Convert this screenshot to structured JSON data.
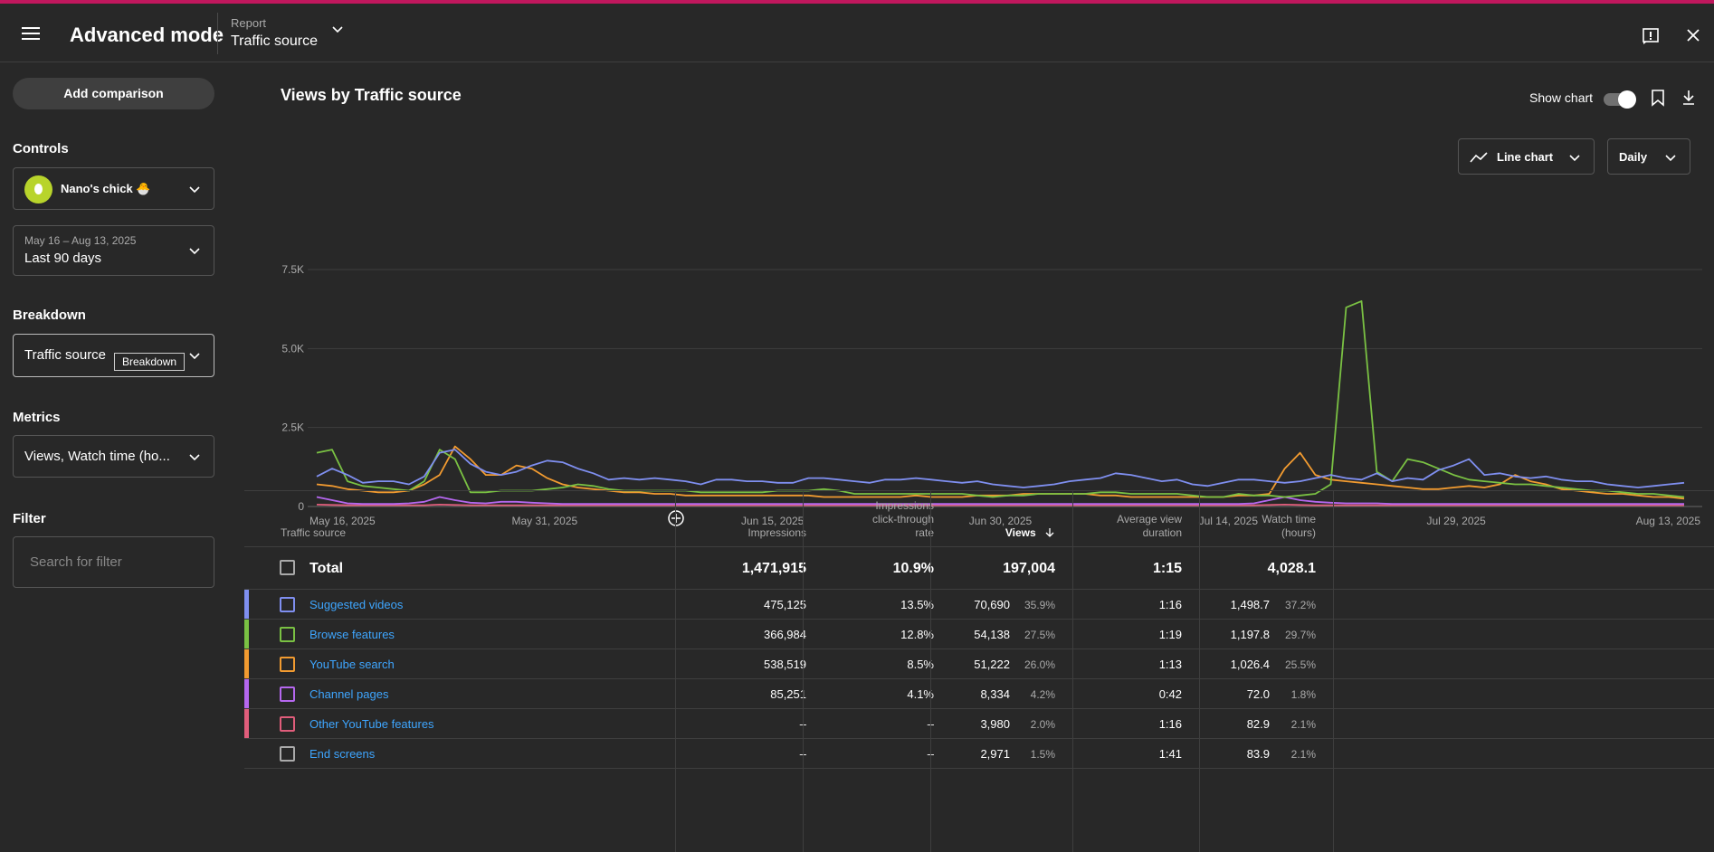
{
  "colors": {
    "accent_topline": "#c0175d",
    "link": "#3ea6ff"
  },
  "header": {
    "app_title": "Advanced mode",
    "report_label": "Report",
    "report_value": "Traffic source"
  },
  "sidebar": {
    "add_comparison": "Add comparison",
    "controls_title": "Controls",
    "channel_name": "Nano's chick 🐣",
    "date_range_sub": "May 16 – Aug 13, 2025",
    "date_range_main": "Last 90 days",
    "breakdown_title": "Breakdown",
    "breakdown_value": "Traffic source",
    "breakdown_tooltip": "Breakdown",
    "metrics_title": "Metrics",
    "metrics_value": "Views, Watch time (ho...",
    "filter_title": "Filter",
    "filter_placeholder": "Search for filter"
  },
  "main": {
    "chart_title": "Views by Traffic source",
    "show_chart_label": "Show chart",
    "chart_type_label": "Line chart",
    "interval_label": "Daily"
  },
  "chart_data": {
    "type": "line",
    "y_ticks": [
      "0",
      "2.5K",
      "5.0K",
      "7.5K"
    ],
    "ylim": [
      0,
      7500
    ],
    "x_tick_labels": [
      "May 16, 2025",
      "May 31, 2025",
      "Jun 15, 2025",
      "Jun 30, 2025",
      "Jul 14, 2025",
      "Jul 29, 2025",
      "Aug 13, 2025"
    ],
    "n_points": 90,
    "series": [
      {
        "name": "Suggested videos",
        "color": "#7f8ff0",
        "values": [
          950,
          1200,
          1000,
          750,
          800,
          800,
          700,
          950,
          1700,
          1800,
          1350,
          1100,
          1000,
          1100,
          1300,
          1450,
          1400,
          1200,
          1050,
          850,
          900,
          850,
          900,
          850,
          800,
          700,
          850,
          850,
          800,
          800,
          750,
          750,
          900,
          900,
          850,
          800,
          750,
          850,
          850,
          900,
          850,
          800,
          750,
          800,
          700,
          650,
          600,
          650,
          700,
          800,
          850,
          900,
          1050,
          1000,
          900,
          800,
          850,
          700,
          650,
          750,
          850,
          850,
          800,
          750,
          800,
          900,
          1000,
          900,
          850,
          1050,
          800,
          900,
          850,
          1150,
          1300,
          1500,
          1000,
          1050,
          950,
          900,
          950,
          850,
          800,
          800,
          700,
          650,
          600,
          650,
          700,
          750
        ]
      },
      {
        "name": "Browse features",
        "color": "#7ac143",
        "values": [
          1700,
          1800,
          800,
          650,
          600,
          550,
          500,
          800,
          1800,
          1500,
          450,
          450,
          500,
          500,
          500,
          550,
          600,
          700,
          650,
          550,
          500,
          500,
          500,
          500,
          500,
          450,
          450,
          450,
          450,
          450,
          500,
          500,
          500,
          550,
          500,
          400,
          400,
          400,
          400,
          400,
          400,
          400,
          400,
          350,
          300,
          350,
          350,
          400,
          400,
          400,
          400,
          450,
          450,
          400,
          400,
          400,
          400,
          350,
          300,
          300,
          400,
          350,
          350,
          300,
          350,
          400,
          700,
          6300,
          6500,
          1100,
          800,
          1500,
          1400,
          1200,
          1000,
          850,
          800,
          750,
          700,
          700,
          650,
          600,
          550,
          500,
          500,
          450,
          400,
          400,
          350,
          300
        ]
      },
      {
        "name": "YouTube search",
        "color": "#f29b30",
        "values": [
          700,
          650,
          550,
          500,
          450,
          450,
          500,
          700,
          1000,
          1900,
          1500,
          1000,
          1000,
          1300,
          1200,
          900,
          700,
          600,
          550,
          500,
          450,
          450,
          400,
          400,
          350,
          350,
          350,
          350,
          350,
          350,
          350,
          350,
          350,
          300,
          300,
          300,
          300,
          300,
          300,
          350,
          300,
          300,
          300,
          350,
          350,
          350,
          400,
          400,
          400,
          400,
          400,
          350,
          350,
          300,
          300,
          300,
          300,
          300,
          300,
          300,
          350,
          350,
          400,
          1200,
          1700,
          1000,
          850,
          800,
          750,
          700,
          650,
          600,
          550,
          550,
          600,
          650,
          600,
          700,
          1000,
          800,
          700,
          550,
          500,
          450,
          400,
          400,
          350,
          300,
          300,
          250
        ]
      },
      {
        "name": "Channel pages",
        "color": "#b567ef",
        "values": [
          300,
          200,
          100,
          80,
          80,
          80,
          100,
          150,
          300,
          200,
          120,
          100,
          150,
          150,
          120,
          100,
          80,
          80,
          80,
          80,
          80,
          80,
          80,
          80,
          80,
          80,
          80,
          80,
          80,
          80,
          80,
          80,
          80,
          80,
          80,
          80,
          80,
          80,
          80,
          80,
          80,
          80,
          80,
          80,
          80,
          80,
          80,
          80,
          80,
          80,
          80,
          80,
          80,
          80,
          80,
          80,
          80,
          80,
          80,
          80,
          80,
          100,
          200,
          300,
          200,
          150,
          120,
          100,
          100,
          100,
          80,
          80,
          80,
          80,
          80,
          80,
          80,
          80,
          80,
          80,
          80,
          80,
          80,
          80,
          80,
          80,
          80,
          80,
          80,
          80
        ]
      },
      {
        "name": "Other YouTube features",
        "color": "#e05d7b",
        "values": [
          60,
          50,
          40,
          40,
          40,
          40,
          40,
          40,
          60,
          50,
          40,
          40,
          40,
          40,
          40,
          40,
          40,
          40,
          40,
          40,
          40,
          40,
          40,
          40,
          40,
          40,
          40,
          40,
          40,
          40,
          40,
          40,
          40,
          40,
          40,
          40,
          40,
          40,
          40,
          40,
          40,
          40,
          40,
          40,
          40,
          40,
          40,
          40,
          40,
          40,
          40,
          40,
          40,
          40,
          40,
          40,
          40,
          40,
          40,
          40,
          40,
          40,
          50,
          60,
          50,
          40,
          40,
          40,
          40,
          40,
          40,
          40,
          40,
          40,
          40,
          40,
          40,
          40,
          40,
          40,
          40,
          40,
          40,
          40,
          40,
          40,
          40,
          40,
          40,
          40
        ]
      }
    ]
  },
  "table": {
    "headers": {
      "source": "Traffic source",
      "impressions": "Impressions",
      "ctr_1": "Impressions",
      "ctr_2": "click-through",
      "ctr_3": "rate",
      "views": "Views",
      "avd_1": "Average view",
      "avd_2": "duration",
      "wt_1": "Watch time",
      "wt_2": "(hours)"
    },
    "total": {
      "label": "Total",
      "impressions": "1,471,915",
      "ctr": "10.9%",
      "views": "197,004",
      "avd": "1:15",
      "watch_time": "4,028.1"
    },
    "rows": [
      {
        "name": "Suggested videos",
        "color": "#7f8ff0",
        "impressions": "475,125",
        "ctr": "13.5%",
        "views": "70,690",
        "views_pct": "35.9%",
        "avd": "1:16",
        "watch_time": "1,498.7",
        "wt_pct": "37.2%"
      },
      {
        "name": "Browse features",
        "color": "#7ac143",
        "impressions": "366,984",
        "ctr": "12.8%",
        "views": "54,138",
        "views_pct": "27.5%",
        "avd": "1:19",
        "watch_time": "1,197.8",
        "wt_pct": "29.7%"
      },
      {
        "name": "YouTube search",
        "color": "#f29b30",
        "impressions": "538,519",
        "ctr": "8.5%",
        "views": "51,222",
        "views_pct": "26.0%",
        "avd": "1:13",
        "watch_time": "1,026.4",
        "wt_pct": "25.5%"
      },
      {
        "name": "Channel pages",
        "color": "#b567ef",
        "impressions": "85,251",
        "ctr": "4.1%",
        "views": "8,334",
        "views_pct": "4.2%",
        "avd": "0:42",
        "watch_time": "72.0",
        "wt_pct": "1.8%"
      },
      {
        "name": "Other YouTube features",
        "color": "#e05d7b",
        "impressions": "–",
        "ctr": "–",
        "views": "3,980",
        "views_pct": "2.0%",
        "avd": "1:16",
        "watch_time": "82.9",
        "wt_pct": "2.1%"
      },
      {
        "name": "End screens",
        "color": "",
        "impressions": "–",
        "ctr": "–",
        "views": "2,971",
        "views_pct": "1.5%",
        "avd": "1:41",
        "watch_time": "83.9",
        "wt_pct": "2.1%"
      }
    ]
  }
}
